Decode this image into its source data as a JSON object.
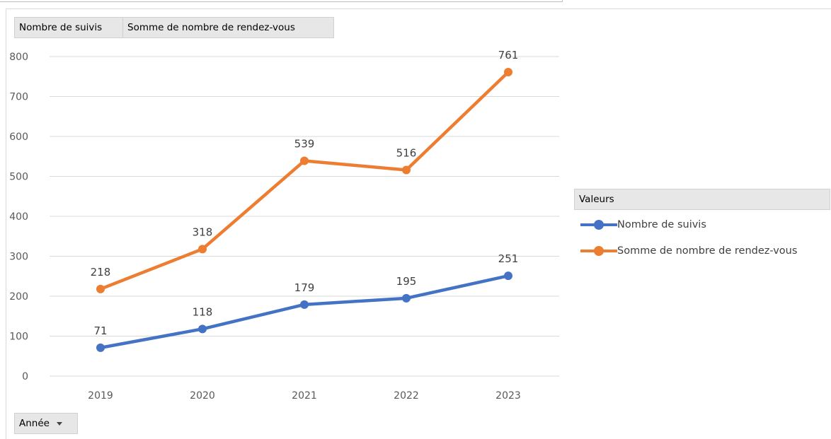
{
  "chart_data": {
    "type": "line",
    "categories": [
      "2019",
      "2020",
      "2021",
      "2022",
      "2023"
    ],
    "series": [
      {
        "name": "Nombre de suivis",
        "values": [
          71,
          118,
          179,
          195,
          251
        ],
        "color": "#4472C4"
      },
      {
        "name": "Somme de nombre de rendez-vous",
        "values": [
          218,
          318,
          539,
          516,
          761
        ],
        "color": "#ED7D31"
      }
    ],
    "yticks": [
      "0",
      "100",
      "200",
      "300",
      "400",
      "500",
      "600",
      "700",
      "800"
    ],
    "ylim": [
      0,
      800
    ],
    "grid": true,
    "legend_position": "right",
    "legend_title": "Valeurs",
    "data_labels": true
  },
  "field_buttons": {
    "values_1": "Nombre de suivis",
    "values_2": "Somme de nombre de rendez-vous",
    "axis_field": "Année"
  },
  "colors": {
    "gridline": "#d9d9d9",
    "axis_text": "#595959"
  }
}
